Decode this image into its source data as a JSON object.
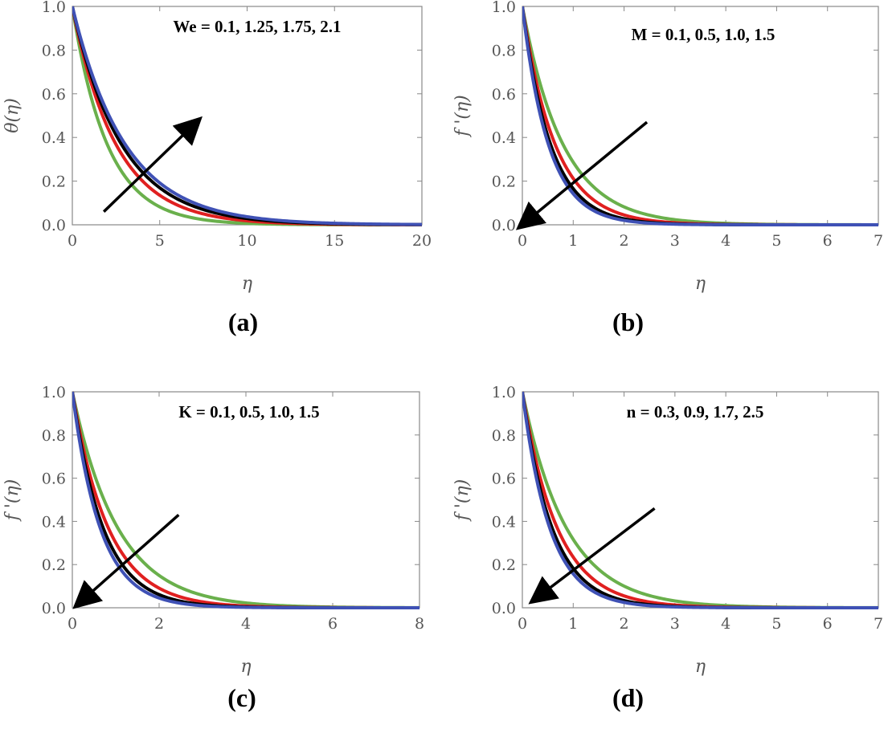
{
  "chart_data": [
    {
      "type": "line",
      "panel_label": "(a)",
      "xlabel": "η",
      "ylabel": "θ(η)",
      "xlim": [
        0,
        20
      ],
      "ylim": [
        0,
        1
      ],
      "xticks": [
        "0",
        "5",
        "10",
        "15",
        "20"
      ],
      "yticks": [
        "0.0",
        "0.2",
        "0.4",
        "0.6",
        "0.8",
        "1.0"
      ],
      "annotation": "We = 0.1, 1.25, 1.75, 2.1",
      "arrow": {
        "from": [
          1.8,
          0.06
        ],
        "to": [
          7.1,
          0.47
        ],
        "direction": "increasing"
      },
      "series": [
        {
          "name": "We = 0.1",
          "color": "#6ab04c",
          "decay": 0.5,
          "exponent": 1.0
        },
        {
          "name": "We = 1.25",
          "color": "#e02020",
          "decay": 0.4,
          "exponent": 1.0
        },
        {
          "name": "We = 1.75",
          "color": "#000000",
          "decay": 0.355,
          "exponent": 1.0
        },
        {
          "name": "We = 2.1",
          "color": "#3f51b5",
          "decay": 0.33,
          "exponent": 1.0
        }
      ]
    },
    {
      "type": "line",
      "panel_label": "(b)",
      "xlabel": "η",
      "ylabel": "f '(η)",
      "xlim": [
        0,
        7
      ],
      "ylim": [
        0,
        1
      ],
      "xticks": [
        "0",
        "1",
        "2",
        "3",
        "4",
        "5",
        "6",
        "7"
      ],
      "yticks": [
        "0.0",
        "0.2",
        "0.4",
        "0.6",
        "0.8",
        "1.0"
      ],
      "annotation": "M = 0.1, 0.5, 1.0,  1.5",
      "arrow": {
        "from": [
          2.45,
          0.47
        ],
        "to": [
          0.0,
          0.0
        ],
        "direction": "decreasing"
      },
      "series": [
        {
          "name": "M = 0.1",
          "color": "#6ab04c",
          "decay": 1.25,
          "exponent": 1.0
        },
        {
          "name": "M = 0.5",
          "color": "#e02020",
          "decay": 1.55,
          "exponent": 1.0
        },
        {
          "name": "M = 1.0",
          "color": "#000000",
          "decay": 1.8,
          "exponent": 1.0
        },
        {
          "name": "M = 1.5",
          "color": "#3f51b5",
          "decay": 1.95,
          "exponent": 1.0
        }
      ]
    },
    {
      "type": "line",
      "panel_label": "(c)",
      "xlabel": "η",
      "ylabel": "f '(η)",
      "xlim": [
        0,
        8
      ],
      "ylim": [
        0,
        1
      ],
      "xticks": [
        "0",
        "2",
        "4",
        "6",
        "8"
      ],
      "yticks": [
        "0.0",
        "0.2",
        "0.4",
        "0.6",
        "0.8",
        "1.0"
      ],
      "annotation": "K = 0.1, 0.5, 1.0, 1.5",
      "arrow": {
        "from": [
          2.45,
          0.43
        ],
        "to": [
          0.15,
          0.02
        ],
        "direction": "decreasing"
      },
      "series": [
        {
          "name": "K = 0.1",
          "color": "#6ab04c",
          "decay": 0.95,
          "exponent": 1.0
        },
        {
          "name": "K = 0.5",
          "color": "#e02020",
          "decay": 1.2,
          "exponent": 1.0
        },
        {
          "name": "K = 1.0",
          "color": "#000000",
          "decay": 1.4,
          "exponent": 1.0
        },
        {
          "name": "K = 1.5",
          "color": "#3f51b5",
          "decay": 1.55,
          "exponent": 1.0
        }
      ]
    },
    {
      "type": "line",
      "panel_label": "(d)",
      "xlabel": "η",
      "ylabel": "f '(η)",
      "xlim": [
        0,
        7
      ],
      "ylim": [
        0,
        1
      ],
      "xticks": [
        "0",
        "1",
        "2",
        "3",
        "4",
        "5",
        "6",
        "7"
      ],
      "yticks": [
        "0.0",
        "0.2",
        "0.4",
        "0.6",
        "0.8",
        "1.0"
      ],
      "annotation": "n = 0.3, 0.9, 1.7, 2.5",
      "arrow": {
        "from": [
          2.6,
          0.46
        ],
        "to": [
          0.25,
          0.04
        ],
        "direction": "decreasing"
      },
      "series": [
        {
          "name": "n = 0.3",
          "color": "#6ab04c",
          "decay": 1.15,
          "exponent": 1.0
        },
        {
          "name": "n = 0.9",
          "color": "#e02020",
          "decay": 1.45,
          "exponent": 1.0
        },
        {
          "name": "n = 1.7",
          "color": "#000000",
          "decay": 1.7,
          "exponent": 1.0
        },
        {
          "name": "n = 2.5",
          "color": "#3f51b5",
          "decay": 1.85,
          "exponent": 1.0
        }
      ]
    }
  ]
}
